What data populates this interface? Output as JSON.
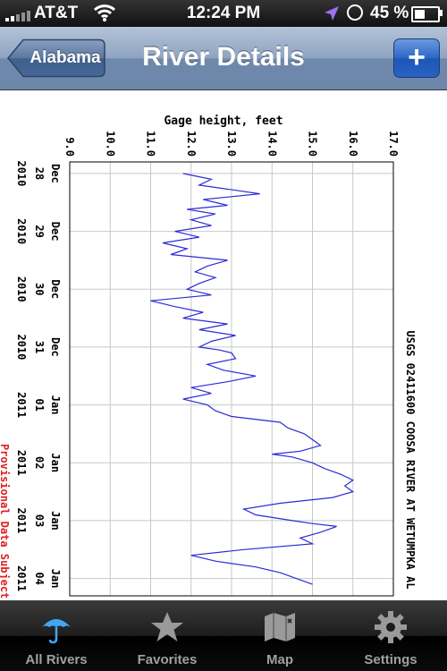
{
  "status_bar": {
    "carrier": "AT&T",
    "time": "12:24 PM",
    "battery_percent": "45 %",
    "battery_level": 0.45,
    "icons": [
      "signal-icon",
      "wifi-icon",
      "location-arrow-icon",
      "alarm-clock-icon",
      "battery-icon"
    ]
  },
  "nav": {
    "back_label": "Alabama",
    "title": "River Details",
    "add_label": "+"
  },
  "chart_data": {
    "type": "line",
    "title": "USGS 02411600 COOSA RIVER AT WETUMPKA AL",
    "ylabel": "Gage height, feet",
    "ylim": [
      9.0,
      17.0
    ],
    "y_ticks": [
      "9.0",
      "10.0",
      "11.0",
      "12.0",
      "13.0",
      "14.0",
      "15.0",
      "16.0",
      "17.0"
    ],
    "x_ticks": [
      {
        "month": "Dec",
        "day": "28",
        "year": "2010"
      },
      {
        "month": "Dec",
        "day": "29",
        "year": "2010"
      },
      {
        "month": "Dec",
        "day": "30",
        "year": "2010"
      },
      {
        "month": "Dec",
        "day": "31",
        "year": "2010"
      },
      {
        "month": "Jan",
        "day": "01",
        "year": "2011"
      },
      {
        "month": "Jan",
        "day": "02",
        "year": "2011"
      },
      {
        "month": "Jan",
        "day": "03",
        "year": "2011"
      },
      {
        "month": "Jan",
        "day": "04",
        "year": "2011"
      }
    ],
    "xlim": [
      -0.2,
      7.3
    ],
    "provisional_note": "Provisional Data Subject to Revision",
    "line_color": "#2b2bd6",
    "series": [
      {
        "x": [
          0.0,
          0.1,
          0.2,
          0.3,
          0.35,
          0.45,
          0.55,
          0.62,
          0.7,
          0.8,
          0.9,
          1.0,
          1.1,
          1.2,
          1.3,
          1.4,
          1.5,
          1.6,
          1.7,
          1.8,
          1.9,
          2.0,
          2.1,
          2.2,
          2.3,
          2.4,
          2.5,
          2.6,
          2.7,
          2.8,
          2.9,
          3.0,
          3.05,
          3.1,
          3.2,
          3.3,
          3.4,
          3.5,
          3.6,
          3.7,
          3.8,
          3.9,
          4.0,
          4.1,
          4.2,
          4.3,
          4.4,
          4.5,
          4.6,
          4.7,
          4.8,
          4.85,
          4.9,
          5.0,
          5.1,
          5.2,
          5.3,
          5.4,
          5.5,
          5.6,
          5.7,
          5.8,
          5.9,
          6.0,
          6.05,
          6.1,
          6.2,
          6.3,
          6.4,
          6.5,
          6.6,
          6.7,
          6.8,
          6.9,
          7.0,
          7.1
        ],
        "y": [
          11.8,
          12.5,
          12.2,
          13.2,
          13.7,
          12.3,
          12.9,
          11.9,
          12.6,
          12.0,
          12.5,
          11.6,
          12.2,
          11.3,
          11.9,
          11.5,
          12.9,
          12.4,
          12.1,
          12.6,
          12.2,
          11.9,
          12.5,
          11.0,
          11.6,
          12.3,
          11.8,
          12.9,
          12.2,
          13.1,
          12.5,
          12.2,
          12.7,
          13.0,
          13.1,
          12.4,
          12.8,
          13.6,
          12.9,
          12.0,
          12.5,
          11.8,
          12.4,
          12.6,
          13.0,
          14.2,
          14.4,
          14.8,
          15.0,
          15.2,
          14.7,
          14.0,
          14.5,
          15.0,
          15.3,
          15.7,
          16.0,
          15.8,
          16.0,
          15.5,
          14.2,
          13.3,
          13.6,
          14.5,
          15.0,
          15.6,
          15.2,
          14.7,
          15.0,
          13.3,
          12.0,
          12.6,
          13.6,
          14.2,
          14.6,
          15.0
        ]
      }
    ]
  },
  "tabs": [
    {
      "label": "All Rivers",
      "icon": "umbrella-icon",
      "active": true
    },
    {
      "label": "Favorites",
      "icon": "star-icon",
      "active": false
    },
    {
      "label": "Map",
      "icon": "map-icon",
      "active": false
    },
    {
      "label": "Settings",
      "icon": "gear-icon",
      "active": false
    }
  ]
}
